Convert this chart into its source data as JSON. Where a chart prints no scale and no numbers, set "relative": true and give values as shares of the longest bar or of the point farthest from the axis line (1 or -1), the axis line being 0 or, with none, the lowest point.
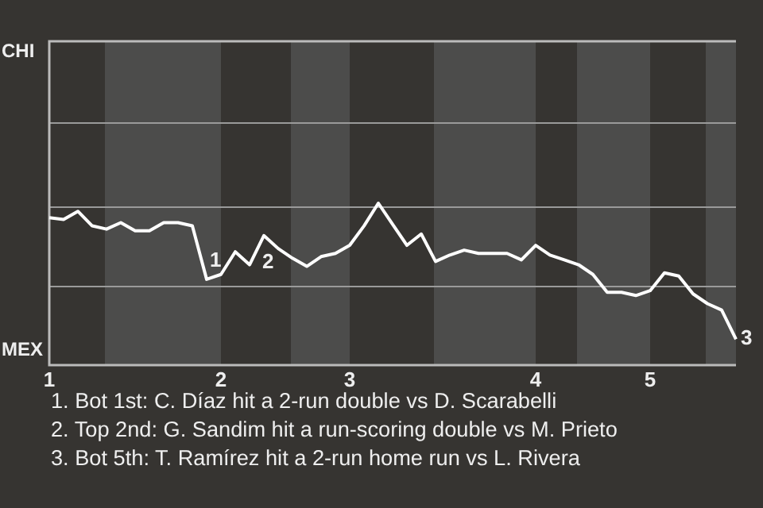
{
  "chart_data": {
    "type": "line",
    "relative": true,
    "categories": [
      "1",
      null,
      null,
      null,
      null,
      null,
      null,
      null,
      null,
      null,
      null,
      null,
      "2",
      null,
      null,
      null,
      null,
      null,
      null,
      null,
      null,
      "3",
      null,
      null,
      null,
      null,
      null,
      null,
      null,
      null,
      null,
      null,
      null,
      null,
      "4",
      null,
      null,
      null,
      null,
      null,
      null,
      null,
      "5",
      null,
      null,
      null,
      null,
      null,
      null
    ],
    "series": [
      {
        "color": "#ffffff",
        "values": [
          0.91,
          0.9,
          0.95,
          0.86,
          0.84,
          0.88,
          0.83,
          0.83,
          0.88,
          0.88,
          0.86,
          0.53,
          0.56,
          0.7,
          0.62,
          0.8,
          0.72,
          0.66,
          0.61,
          0.67,
          0.69,
          0.74,
          0.86,
          1,
          0.87,
          0.74,
          0.81,
          0.64,
          0.68,
          0.71,
          0.69,
          0.69,
          0.69,
          0.65,
          0.74,
          0.68,
          0.65,
          0.62,
          0.56,
          0.45,
          0.45,
          0.43,
          0.46,
          0.57,
          0.55,
          0.44,
          0.38,
          0.34,
          0.16
        ]
      }
    ],
    "marker": "none",
    "ref_lines": [
      {
        "axis": "y",
        "value": 0.49,
        "color": "#9a9a9a"
      },
      {
        "axis": "y",
        "value": 0.98,
        "color": "#9a9a9a"
      }
    ],
    "annotations": [
      "CHI",
      "MEX",
      "1",
      "2",
      "3",
      "1. Bot 1st: C. Díaz hit a 2-run double vs D. Scarabelli",
      "2. Top 2nd: G. Sandim hit a run-scoring double vs M. Prieto",
      "3. Bot 5th: T. Ramírez hit a 2-run home run vs L. Rivera"
    ]
  }
}
